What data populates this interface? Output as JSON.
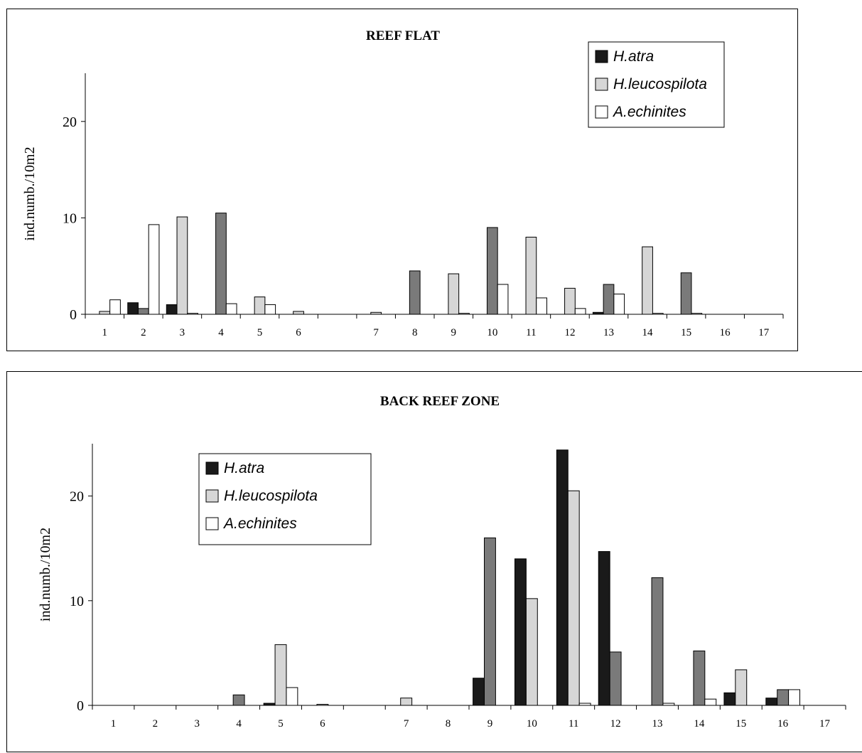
{
  "chart_data": [
    {
      "type": "bar",
      "title": "REEF FLAT",
      "ylabel": "ind.numb./10m2",
      "xlabel": "",
      "ylim": [
        0,
        25
      ],
      "yticks": [
        0,
        10,
        20
      ],
      "categories": [
        "1",
        "2",
        "3",
        "4",
        "5",
        "6",
        "",
        "7",
        "8",
        "9",
        "10",
        "11",
        "12",
        "13",
        "14",
        "15",
        "16",
        "17"
      ],
      "legend_position": "top-right",
      "colors": {
        "series_bar": [
          "#1a1a1a",
          "#7a7a7a",
          "#d6d6d6",
          "#ffffff"
        ]
      },
      "series": [
        {
          "name": "H.atra",
          "values": [
            0,
            1.2,
            1.0,
            0,
            0,
            0,
            0,
            0,
            0,
            0,
            0,
            0,
            0,
            0.2,
            0,
            0,
            0,
            0
          ]
        },
        {
          "name": "H.leucospilota",
          "values": [
            0.3,
            0.6,
            10.1,
            10.5,
            1.8,
            0.3,
            0,
            0.2,
            4.5,
            4.2,
            9.0,
            8.0,
            2.7,
            3.1,
            7.0,
            4.3,
            0,
            0
          ]
        },
        {
          "name": "A.echinites",
          "values": [
            1.5,
            9.3,
            0.1,
            1.1,
            1.0,
            0,
            0,
            0,
            0,
            0.1,
            3.1,
            1.7,
            0.6,
            2.1,
            0.1,
            0.1,
            0,
            0
          ]
        }
      ],
      "bar_fills": [
        [
          "#d6d6d6",
          "#7a7a7a",
          "#d6d6d6",
          "#7a7a7a",
          "#d6d6d6",
          "#d6d6d6",
          "#d6d6d6",
          "#d6d6d6",
          "#7a7a7a",
          "#d6d6d6",
          "#7a7a7a",
          "#d6d6d6",
          "#d6d6d6",
          "#7a7a7a",
          "#d6d6d6",
          "#7a7a7a",
          "#d6d6d6",
          "#d6d6d6"
        ]
      ]
    },
    {
      "type": "bar",
      "title": "BACK REEF ZONE",
      "ylabel": "ind.numb./10m2",
      "xlabel": "",
      "ylim": [
        0,
        25
      ],
      "yticks": [
        0,
        10,
        20
      ],
      "categories": [
        "1",
        "2",
        "3",
        "4",
        "5",
        "6",
        "",
        "7",
        "8",
        "9",
        "10",
        "11",
        "12",
        "13",
        "14",
        "15",
        "16",
        "17"
      ],
      "legend_position": "top-left",
      "colors": {
        "series_bar": [
          "#1a1a1a",
          "#7a7a7a",
          "#d6d6d6",
          "#ffffff"
        ]
      },
      "series": [
        {
          "name": "H.atra",
          "values": [
            0,
            0,
            0,
            0,
            0.2,
            0,
            0,
            0,
            0,
            2.6,
            14.0,
            24.4,
            14.7,
            0,
            0,
            1.2,
            0.7,
            0
          ]
        },
        {
          "name": "H.leucospilota",
          "values": [
            0,
            0,
            0,
            1.0,
            5.8,
            0.1,
            0,
            0.7,
            0,
            16.0,
            10.2,
            20.5,
            5.1,
            12.2,
            5.2,
            3.4,
            1.5,
            0
          ]
        },
        {
          "name": "A.echinites",
          "values": [
            0,
            0,
            0,
            0,
            1.7,
            0,
            0,
            0,
            0,
            0,
            0,
            0.2,
            0,
            0.2,
            0.6,
            0,
            1.5,
            0
          ]
        }
      ],
      "bar_fills": [
        [
          "#d6d6d6",
          "#d6d6d6",
          "#d6d6d6",
          "#7a7a7a",
          "#d6d6d6",
          "#d6d6d6",
          "#d6d6d6",
          "#d6d6d6",
          "#d6d6d6",
          "#7a7a7a",
          "#d6d6d6",
          "#d6d6d6",
          "#7a7a7a",
          "#7a7a7a",
          "#7a7a7a",
          "#d6d6d6",
          "#7a7a7a",
          "#d6d6d6"
        ]
      ]
    }
  ],
  "legend_swatches": [
    "#1a1a1a",
    "#d6d6d6",
    "#ffffff"
  ]
}
